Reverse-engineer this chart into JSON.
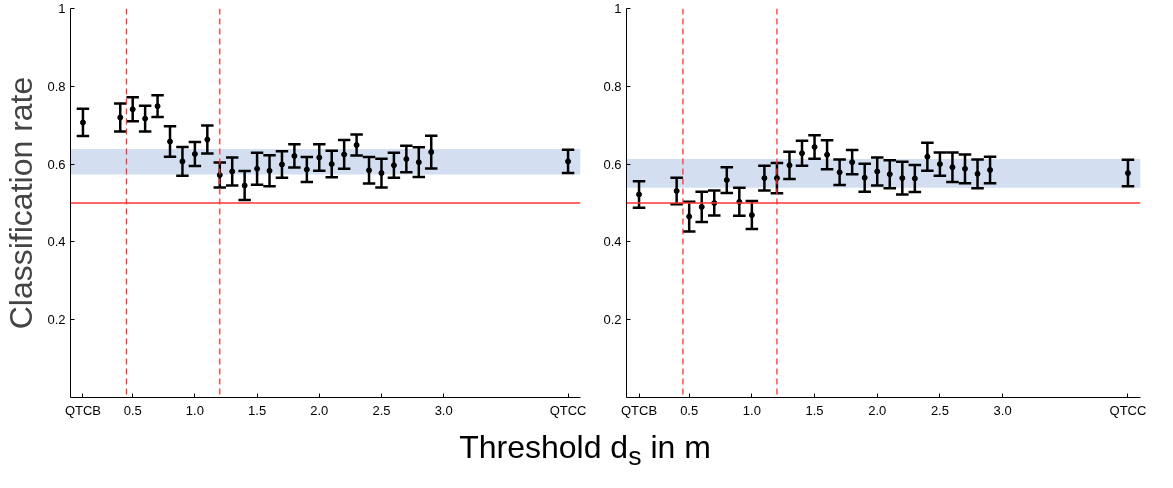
{
  "chart_data": [
    {
      "type": "scatter",
      "ylabel": "Classification rate",
      "xlabel": "Threshold d$_{s}$ in m",
      "marker": "circle",
      "grid": false,
      "xlim": [
        0,
        4.1
      ],
      "ylim": [
        0,
        1
      ],
      "xticks": [
        {
          "value": 0.1,
          "label": "QTCB"
        },
        0.5,
        {
          "value": 1,
          "label": "1.0"
        },
        1.5,
        {
          "value": 2,
          "label": "2.0"
        },
        2.5,
        {
          "value": 3,
          "label": "3.0"
        },
        {
          "value": 4,
          "label": "QTCC"
        }
      ],
      "yticks": [
        0.2,
        0.4,
        0.6,
        0.8,
        1
      ],
      "ref_lines": [
        {
          "axis": "y",
          "value": 0.5,
          "color": "#ff3333",
          "line_style": "solid"
        },
        {
          "axis": "x",
          "value": 0.45,
          "color": "#ff3333",
          "line_style": "dashed"
        },
        {
          "axis": "x",
          "value": 1.2,
          "color": "#ff3333",
          "line_style": "dashed"
        }
      ],
      "bands": [
        {
          "axis": "y",
          "from": 0.573,
          "to": 0.639,
          "color": "#d3dff1"
        }
      ],
      "series": [
        {
          "color": "#000000",
          "x": [
            0.1,
            0.4,
            0.5,
            0.6,
            0.7,
            0.8,
            0.9,
            1.0,
            1.1,
            1.2,
            1.3,
            1.4,
            1.5,
            1.6,
            1.7,
            1.8,
            1.9,
            2.0,
            2.1,
            2.2,
            2.3,
            2.4,
            2.5,
            2.6,
            2.7,
            2.8,
            2.9,
            4.0
          ],
          "values": [
            0.707,
            0.72,
            0.741,
            0.717,
            0.749,
            0.658,
            0.607,
            0.626,
            0.663,
            0.572,
            0.581,
            0.545,
            0.588,
            0.583,
            0.599,
            0.621,
            0.586,
            0.617,
            0.6,
            0.625,
            0.649,
            0.584,
            0.577,
            0.597,
            0.613,
            0.605,
            0.631,
            0.607
          ],
          "errors": [
            0.035,
            0.036,
            0.031,
            0.033,
            0.028,
            0.039,
            0.037,
            0.031,
            0.036,
            0.032,
            0.036,
            0.037,
            0.041,
            0.04,
            0.034,
            0.03,
            0.032,
            0.034,
            0.034,
            0.037,
            0.027,
            0.034,
            0.037,
            0.032,
            0.034,
            0.038,
            0.042,
            0.03
          ]
        }
      ]
    },
    {
      "type": "scatter",
      "marker": "circle",
      "grid": false,
      "xlim": [
        0,
        4.1
      ],
      "ylim": [
        0,
        1
      ],
      "xticks": [
        {
          "value": 0.1,
          "label": "QTCB"
        },
        0.5,
        {
          "value": 1,
          "label": "1.0"
        },
        1.5,
        {
          "value": 2,
          "label": "2.0"
        },
        2.5,
        {
          "value": 3,
          "label": "3.0"
        },
        {
          "value": 4,
          "label": "QTCC"
        }
      ],
      "yticks": [
        0.2,
        0.4,
        0.6,
        0.8,
        1
      ],
      "ref_lines": [
        {
          "axis": "y",
          "value": 0.5,
          "color": "#ff3333",
          "line_style": "solid"
        },
        {
          "axis": "x",
          "value": 0.45,
          "color": "#ff3333",
          "line_style": "dashed"
        },
        {
          "axis": "x",
          "value": 1.2,
          "color": "#ff3333",
          "line_style": "dashed"
        }
      ],
      "bands": [
        {
          "axis": "y",
          "from": 0.539,
          "to": 0.613,
          "color": "#d3dff1"
        }
      ],
      "series": [
        {
          "color": "#000000",
          "x": [
            0.1,
            0.4,
            0.5,
            0.6,
            0.7,
            0.8,
            0.9,
            1.0,
            1.1,
            1.2,
            1.3,
            1.4,
            1.5,
            1.6,
            1.7,
            1.8,
            1.9,
            2.0,
            2.1,
            2.2,
            2.3,
            2.4,
            2.5,
            2.6,
            2.7,
            2.8,
            2.9,
            4.0
          ],
          "values": [
            0.522,
            0.531,
            0.465,
            0.49,
            0.5,
            0.559,
            0.503,
            0.469,
            0.564,
            0.564,
            0.597,
            0.628,
            0.644,
            0.624,
            0.579,
            0.605,
            0.565,
            0.581,
            0.574,
            0.564,
            0.563,
            0.619,
            0.6,
            0.592,
            0.588,
            0.575,
            0.585,
            0.577
          ],
          "errors": [
            0.034,
            0.034,
            0.038,
            0.039,
            0.032,
            0.033,
            0.036,
            0.036,
            0.032,
            0.039,
            0.035,
            0.032,
            0.03,
            0.037,
            0.033,
            0.031,
            0.036,
            0.036,
            0.036,
            0.042,
            0.035,
            0.036,
            0.03,
            0.038,
            0.037,
            0.037,
            0.034,
            0.034
          ]
        }
      ]
    }
  ]
}
